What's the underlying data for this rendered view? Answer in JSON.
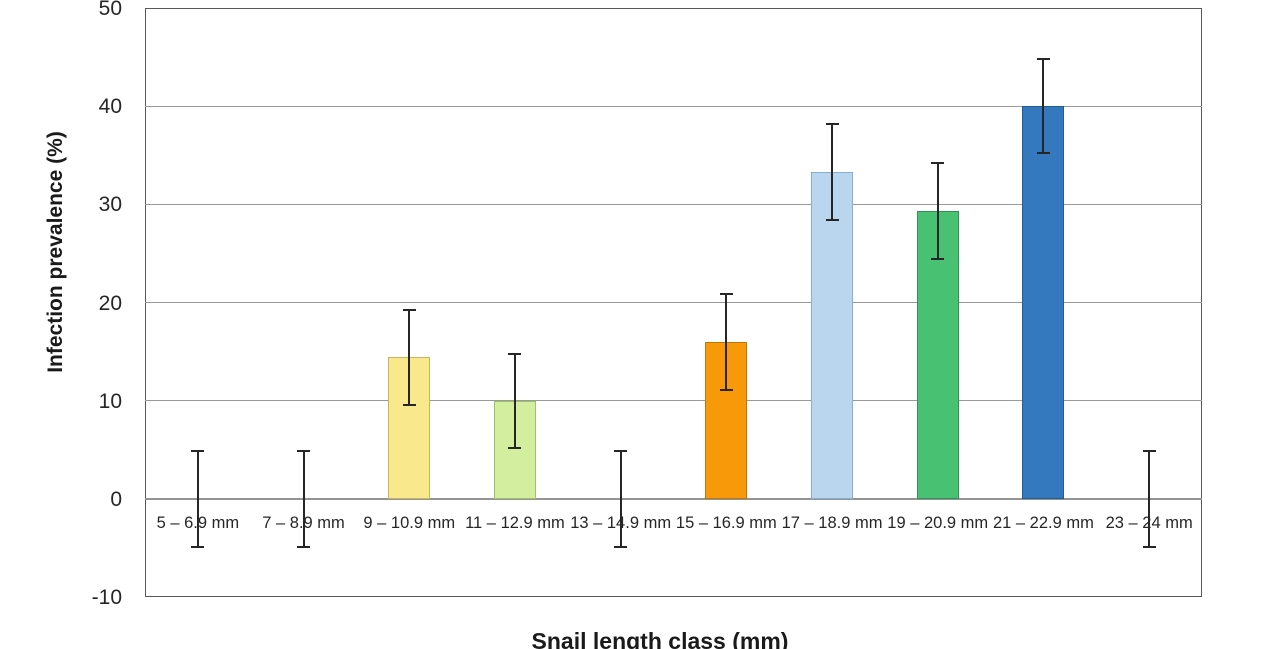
{
  "chart_data": {
    "type": "bar",
    "title": "",
    "xlabel": "Snail length class (mm)",
    "ylabel": "Infection prevalence (%)",
    "categories": [
      "5 – 6.9 mm",
      "7 – 8.9 mm",
      "9 – 10.9 mm",
      "11 – 12.9 mm",
      "13 – 14.9 mm",
      "15 – 16.9 mm",
      "17 – 18.9 mm",
      "19 – 20.9 mm",
      "21 – 22.9 mm",
      "23 – 24 mm"
    ],
    "values": [
      0,
      0,
      14.4,
      10,
      0,
      16,
      33.3,
      29.3,
      40,
      0
    ],
    "errors": [
      4.9,
      4.9,
      4.8,
      4.8,
      4.9,
      4.9,
      4.9,
      4.9,
      4.8,
      4.9
    ],
    "bar_colors": [
      "none",
      "none",
      "#FAE88C",
      "#D2EE9E",
      "none",
      "#F79908",
      "#BAD5EE",
      "#48C173",
      "#3478BE",
      "none"
    ],
    "bar_border_colors": [
      "none",
      "none",
      "#C9B45E",
      "#9DC26A",
      "none",
      "#C07607",
      "#86AFD6",
      "#2E9155",
      "#245B93",
      "none"
    ],
    "ylim": [
      -10,
      50
    ],
    "yticks": [
      -10,
      0,
      10,
      20,
      30,
      40,
      50
    ],
    "grid": true,
    "legend": "none",
    "gridline_color": "#999999",
    "zero_line_color": "#949494",
    "frame_color": "#595959",
    "error_bar_color": "#262626",
    "background": "#FFFFFF"
  }
}
